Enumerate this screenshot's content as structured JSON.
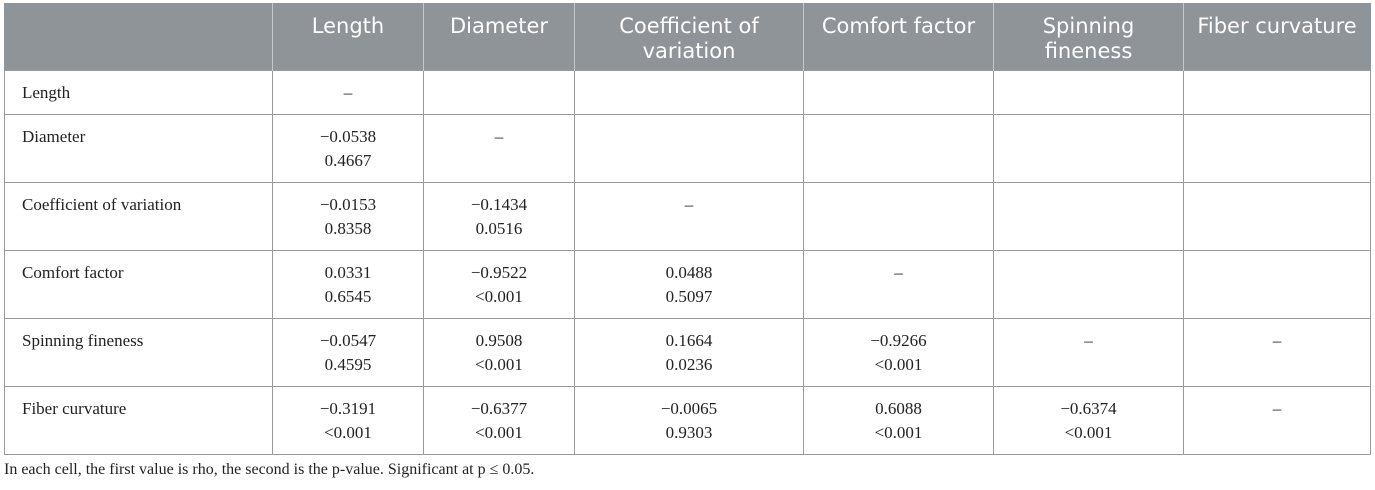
{
  "table": {
    "corner": "",
    "headers": [
      "Length",
      "Diameter",
      "Coefficient of variation",
      "Comfort factor",
      "Spinning fineness",
      "Fiber curvature"
    ],
    "rows": [
      {
        "label": "Length",
        "cells": [
          {
            "rho": "–",
            "p": ""
          },
          {
            "rho": "",
            "p": ""
          },
          {
            "rho": "",
            "p": ""
          },
          {
            "rho": "",
            "p": ""
          },
          {
            "rho": "",
            "p": ""
          },
          {
            "rho": "",
            "p": ""
          }
        ]
      },
      {
        "label": "Diameter",
        "cells": [
          {
            "rho": "−0.0538",
            "p": "0.4667"
          },
          {
            "rho": "–",
            "p": ""
          },
          {
            "rho": "",
            "p": ""
          },
          {
            "rho": "",
            "p": ""
          },
          {
            "rho": "",
            "p": ""
          },
          {
            "rho": "",
            "p": ""
          }
        ]
      },
      {
        "label": "Coefficient of variation",
        "cells": [
          {
            "rho": "−0.0153",
            "p": "0.8358"
          },
          {
            "rho": "−0.1434",
            "p": "0.0516"
          },
          {
            "rho": "–",
            "p": ""
          },
          {
            "rho": "",
            "p": ""
          },
          {
            "rho": "",
            "p": ""
          },
          {
            "rho": "",
            "p": ""
          }
        ]
      },
      {
        "label": "Comfort factor",
        "cells": [
          {
            "rho": "0.0331",
            "p": "0.6545"
          },
          {
            "rho": "−0.9522",
            "p": "<0.001"
          },
          {
            "rho": "0.0488",
            "p": "0.5097"
          },
          {
            "rho": "–",
            "p": ""
          },
          {
            "rho": "",
            "p": ""
          },
          {
            "rho": "",
            "p": ""
          }
        ]
      },
      {
        "label": "Spinning fineness",
        "cells": [
          {
            "rho": "−0.0547",
            "p": "0.4595"
          },
          {
            "rho": "0.9508",
            "p": "<0.001"
          },
          {
            "rho": "0.1664",
            "p": "0.0236"
          },
          {
            "rho": "−0.9266",
            "p": "<0.001"
          },
          {
            "rho": "–",
            "p": ""
          },
          {
            "rho": "–",
            "p": ""
          }
        ]
      },
      {
        "label": "Fiber curvature",
        "cells": [
          {
            "rho": "−0.3191",
            "p": "<0.001"
          },
          {
            "rho": "−0.6377",
            "p": "<0.001"
          },
          {
            "rho": "−0.0065",
            "p": "0.9303"
          },
          {
            "rho": "0.6088",
            "p": "<0.001"
          },
          {
            "rho": "−0.6374",
            "p": "<0.001"
          },
          {
            "rho": "–",
            "p": ""
          }
        ]
      }
    ]
  },
  "footnote": "In each cell, the first value is rho, the second is the p-value. Significant at p ≤ 0.05.",
  "colors": {
    "header_bg": "#8e9497",
    "header_text": "#ffffff",
    "border": "#9a9a9a"
  }
}
